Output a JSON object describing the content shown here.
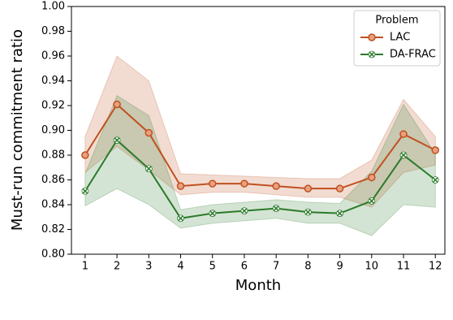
{
  "chart_data": {
    "type": "line",
    "xlabel": "Month",
    "ylabel": "Must-run commitment ratio",
    "x": [
      1,
      2,
      3,
      4,
      5,
      6,
      7,
      8,
      9,
      10,
      11,
      12
    ],
    "xlim": [
      0.57,
      12.3
    ],
    "xticks": [
      1,
      2,
      3,
      4,
      5,
      6,
      7,
      8,
      9,
      10,
      11,
      12
    ],
    "ylim": [
      0.8,
      1.0
    ],
    "yticks": [
      {
        "value": 0.8,
        "label": "0.80"
      },
      0.82,
      0.84,
      0.86,
      0.88,
      {
        "value": 0.9,
        "label": "0.90"
      },
      0.92,
      0.94,
      0.96,
      0.98,
      {
        "value": 1.0,
        "label": "1.00"
      }
    ],
    "legend_title": "Problem",
    "legend_position": "upper right",
    "series": [
      {
        "name": "LAC",
        "color": "#c0501f",
        "marker": "circle",
        "values": [
          0.88,
          0.921,
          0.898,
          0.855,
          0.857,
          0.857,
          0.855,
          0.853,
          0.853,
          0.862,
          0.897,
          0.884
        ],
        "lower": [
          0.866,
          0.887,
          0.868,
          0.848,
          0.85,
          0.85,
          0.848,
          0.846,
          0.846,
          0.838,
          0.866,
          0.872
        ],
        "upper": [
          0.895,
          0.96,
          0.94,
          0.865,
          0.864,
          0.863,
          0.862,
          0.861,
          0.861,
          0.876,
          0.925,
          0.895
        ]
      },
      {
        "name": "DA-FRAC",
        "color": "#2a7a2a",
        "marker": "x",
        "values": [
          0.851,
          0.892,
          0.869,
          0.829,
          0.833,
          0.835,
          0.837,
          0.834,
          0.833,
          0.843,
          0.88,
          0.86
        ],
        "lower": [
          0.839,
          0.853,
          0.84,
          0.821,
          0.825,
          0.827,
          0.829,
          0.825,
          0.825,
          0.815,
          0.84,
          0.838
        ],
        "upper": [
          0.865,
          0.928,
          0.912,
          0.836,
          0.84,
          0.842,
          0.844,
          0.842,
          0.841,
          0.867,
          0.921,
          0.881
        ]
      }
    ]
  }
}
